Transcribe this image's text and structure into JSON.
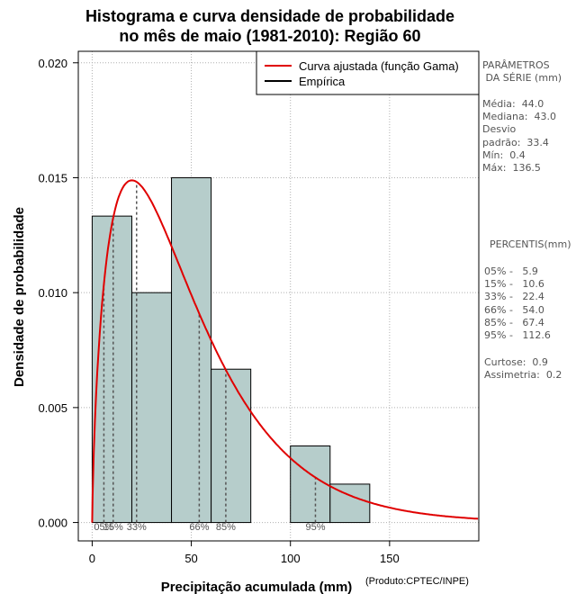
{
  "chart_data": {
    "type": "histogram",
    "title_line1": "Histograma e curva densidade de probabilidade",
    "title_line2": "no mês de maio (1981-2010): Região 60",
    "xlabel": "Precipitação acumulada (mm)",
    "ylabel": "Densidade de probabilidade",
    "credit": "(Produto:CPTEC/INPE)",
    "xlim": [
      -7,
      195
    ],
    "ylim": [
      -0.0008,
      0.0205
    ],
    "x_ticks": [
      0,
      50,
      100,
      150
    ],
    "x_tick_labels": [
      "0",
      "50",
      "100",
      "150"
    ],
    "y_ticks": [
      0.0,
      0.005,
      0.01,
      0.015,
      0.02
    ],
    "y_tick_labels": [
      "0.000",
      "0.005",
      "0.010",
      "0.015",
      "0.020"
    ],
    "grid": true,
    "bins": [
      {
        "x0": 0,
        "x1": 20,
        "density": 0.01333
      },
      {
        "x0": 20,
        "x1": 40,
        "density": 0.01
      },
      {
        "x0": 40,
        "x1": 60,
        "density": 0.015
      },
      {
        "x0": 60,
        "x1": 80,
        "density": 0.00667
      },
      {
        "x0": 80,
        "x1": 100,
        "density": 0.0
      },
      {
        "x0": 100,
        "x1": 120,
        "density": 0.00333
      },
      {
        "x0": 120,
        "x1": 140,
        "density": 0.00167
      }
    ],
    "gamma_fit": {
      "name": "Curva ajustada (função Gama)",
      "shape": 1.7,
      "scale": 28.6,
      "color": "#e00000"
    },
    "empirical": {
      "name": "Empírica",
      "color": "#000000"
    },
    "legend_position": "top-right",
    "percentile_lines": [
      {
        "label": "05%",
        "value": 5.9
      },
      {
        "label": "15%",
        "value": 10.6
      },
      {
        "label": "33%",
        "value": 22.4
      },
      {
        "label": "66%",
        "value": 54.0
      },
      {
        "label": "85%",
        "value": 67.4
      },
      {
        "label": "95%",
        "value": 112.6
      }
    ],
    "percentile_axis_labels": [
      "05%",
      "15%",
      "33%",
      "66%",
      "85%",
      "95%"
    ]
  },
  "side_panel": {
    "params_title": "PARÂMETROS\n DA SÉRIE (mm)",
    "stats": "Média:  44.0\nMediana:  43.0\nDesvio\npadrão:  33.4\nMín:  0.4\nMáx:  136.5",
    "percentiles_title": "PERCENTIS(mm)",
    "percentiles": "05% -   5.9\n15% -   10.6\n33% -   22.4\n66% -   54.0\n85% -   67.4\n95% -   112.6",
    "shape": "Curtose:  0.9\nAssimetria:  0.2"
  },
  "colors": {
    "bar_fill": "#b6cdcb",
    "bar_stroke": "#000000",
    "curve": "#e00000",
    "grid": "#b0b0b0",
    "percentile": "#555555"
  }
}
